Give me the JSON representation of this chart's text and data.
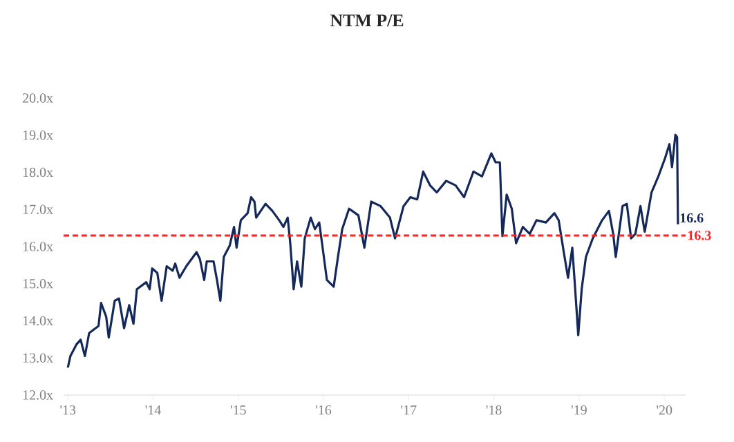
{
  "chart_data": {
    "type": "line",
    "title": "NTM P/E",
    "x": [
      2013.0,
      2013.03,
      2013.1,
      2013.15,
      2013.2,
      2013.25,
      2013.36,
      2013.39,
      2013.45,
      2013.48,
      2013.55,
      2013.6,
      2013.66,
      2013.72,
      2013.77,
      2013.81,
      2013.92,
      2013.96,
      2013.99,
      2014.05,
      2014.1,
      2014.16,
      2014.23,
      2014.26,
      2014.31,
      2014.39,
      2014.47,
      2014.51,
      2014.55,
      2014.6,
      2014.63,
      2014.71,
      2014.75,
      2014.79,
      2014.83,
      2014.9,
      2014.95,
      2014.98,
      2015.03,
      2015.11,
      2015.15,
      2015.19,
      2015.21,
      2015.32,
      2015.4,
      2015.48,
      2015.53,
      2015.58,
      2015.61,
      2015.65,
      2015.69,
      2015.74,
      2015.78,
      2015.85,
      2015.9,
      2015.95,
      2015.99,
      2016.04,
      2016.12,
      2016.17,
      2016.22,
      2016.3,
      2016.41,
      2016.48,
      2016.56,
      2016.67,
      2016.78,
      2016.84,
      2016.94,
      2017.02,
      2017.1,
      2017.17,
      2017.25,
      2017.33,
      2017.44,
      2017.55,
      2017.65,
      2017.76,
      2017.86,
      2017.97,
      2018.02,
      2018.07,
      2018.1,
      2018.15,
      2018.21,
      2018.26,
      2018.34,
      2018.42,
      2018.5,
      2018.61,
      2018.71,
      2018.76,
      2018.82,
      2018.87,
      2018.92,
      2018.95,
      2018.99,
      2019.03,
      2019.08,
      2019.16,
      2019.27,
      2019.35,
      2019.4,
      2019.43,
      2019.51,
      2019.56,
      2019.61,
      2019.66,
      2019.72,
      2019.77,
      2019.85,
      2019.93,
      2020.01,
      2020.06,
      2020.09,
      2020.13,
      2020.15,
      2020.16
    ],
    "series": [
      {
        "color": "#14285a",
        "values": [
          12.74,
          13.05,
          13.36,
          13.49,
          13.05,
          13.67,
          13.86,
          14.48,
          14.11,
          13.55,
          14.54,
          14.6,
          13.8,
          14.42,
          13.92,
          14.85,
          15.04,
          14.85,
          15.41,
          15.29,
          14.54,
          15.47,
          15.35,
          15.54,
          15.16,
          15.47,
          15.72,
          15.85,
          15.66,
          15.1,
          15.6,
          15.6,
          15.1,
          14.54,
          15.72,
          16.03,
          16.53,
          15.97,
          16.71,
          16.9,
          17.33,
          17.21,
          16.78,
          17.15,
          16.96,
          16.71,
          16.53,
          16.78,
          16.09,
          14.85,
          15.6,
          14.92,
          16.22,
          16.78,
          16.47,
          16.65,
          15.97,
          15.1,
          14.92,
          15.72,
          16.47,
          17.02,
          16.84,
          15.97,
          17.21,
          17.09,
          16.78,
          16.22,
          17.09,
          17.33,
          17.27,
          18.02,
          17.65,
          17.46,
          17.77,
          17.65,
          17.33,
          18.02,
          17.89,
          18.51,
          18.27,
          18.27,
          16.28,
          17.4,
          17.02,
          16.09,
          16.53,
          16.34,
          16.71,
          16.65,
          16.9,
          16.71,
          15.85,
          15.16,
          15.97,
          14.98,
          13.61,
          14.85,
          15.72,
          16.22,
          16.71,
          16.96,
          16.34,
          15.72,
          17.09,
          17.15,
          16.22,
          16.34,
          17.09,
          16.4,
          17.46,
          17.89,
          18.39,
          18.76,
          18.14,
          19.01,
          18.95,
          16.6
        ]
      }
    ],
    "xlim": [
      2012.95,
      2020.25
    ],
    "xticks": [
      {
        "value": 2013,
        "label": "'13"
      },
      {
        "value": 2014,
        "label": "'14"
      },
      {
        "value": 2015,
        "label": "'15"
      },
      {
        "value": 2016,
        "label": "'16"
      },
      {
        "value": 2017,
        "label": "'17"
      },
      {
        "value": 2018,
        "label": "'18"
      },
      {
        "value": 2019,
        "label": "'19"
      },
      {
        "value": 2020,
        "label": "'20"
      }
    ],
    "ylim": [
      12,
      20
    ],
    "yticks": [
      {
        "value": 12,
        "label": "12.0x"
      },
      {
        "value": 13,
        "label": "13.0x"
      },
      {
        "value": 14,
        "label": "14.0x"
      },
      {
        "value": 15,
        "label": "15.0x"
      },
      {
        "value": 16,
        "label": "16.0x"
      },
      {
        "value": 17,
        "label": "17.0x"
      },
      {
        "value": 18,
        "label": "18.0x"
      },
      {
        "value": 19,
        "label": "19.0x"
      },
      {
        "value": 20,
        "label": "20.0x"
      }
    ],
    "ref_lines": [
      {
        "axis": "y",
        "value": 16.3,
        "label": "16.3",
        "color": "#ff2020",
        "line_style": "dashed"
      }
    ],
    "annotations": [
      {
        "text": "16.6",
        "x": 2020.16,
        "y": 16.6
      }
    ],
    "grid": false,
    "line_style": "solid",
    "marker": "none"
  }
}
